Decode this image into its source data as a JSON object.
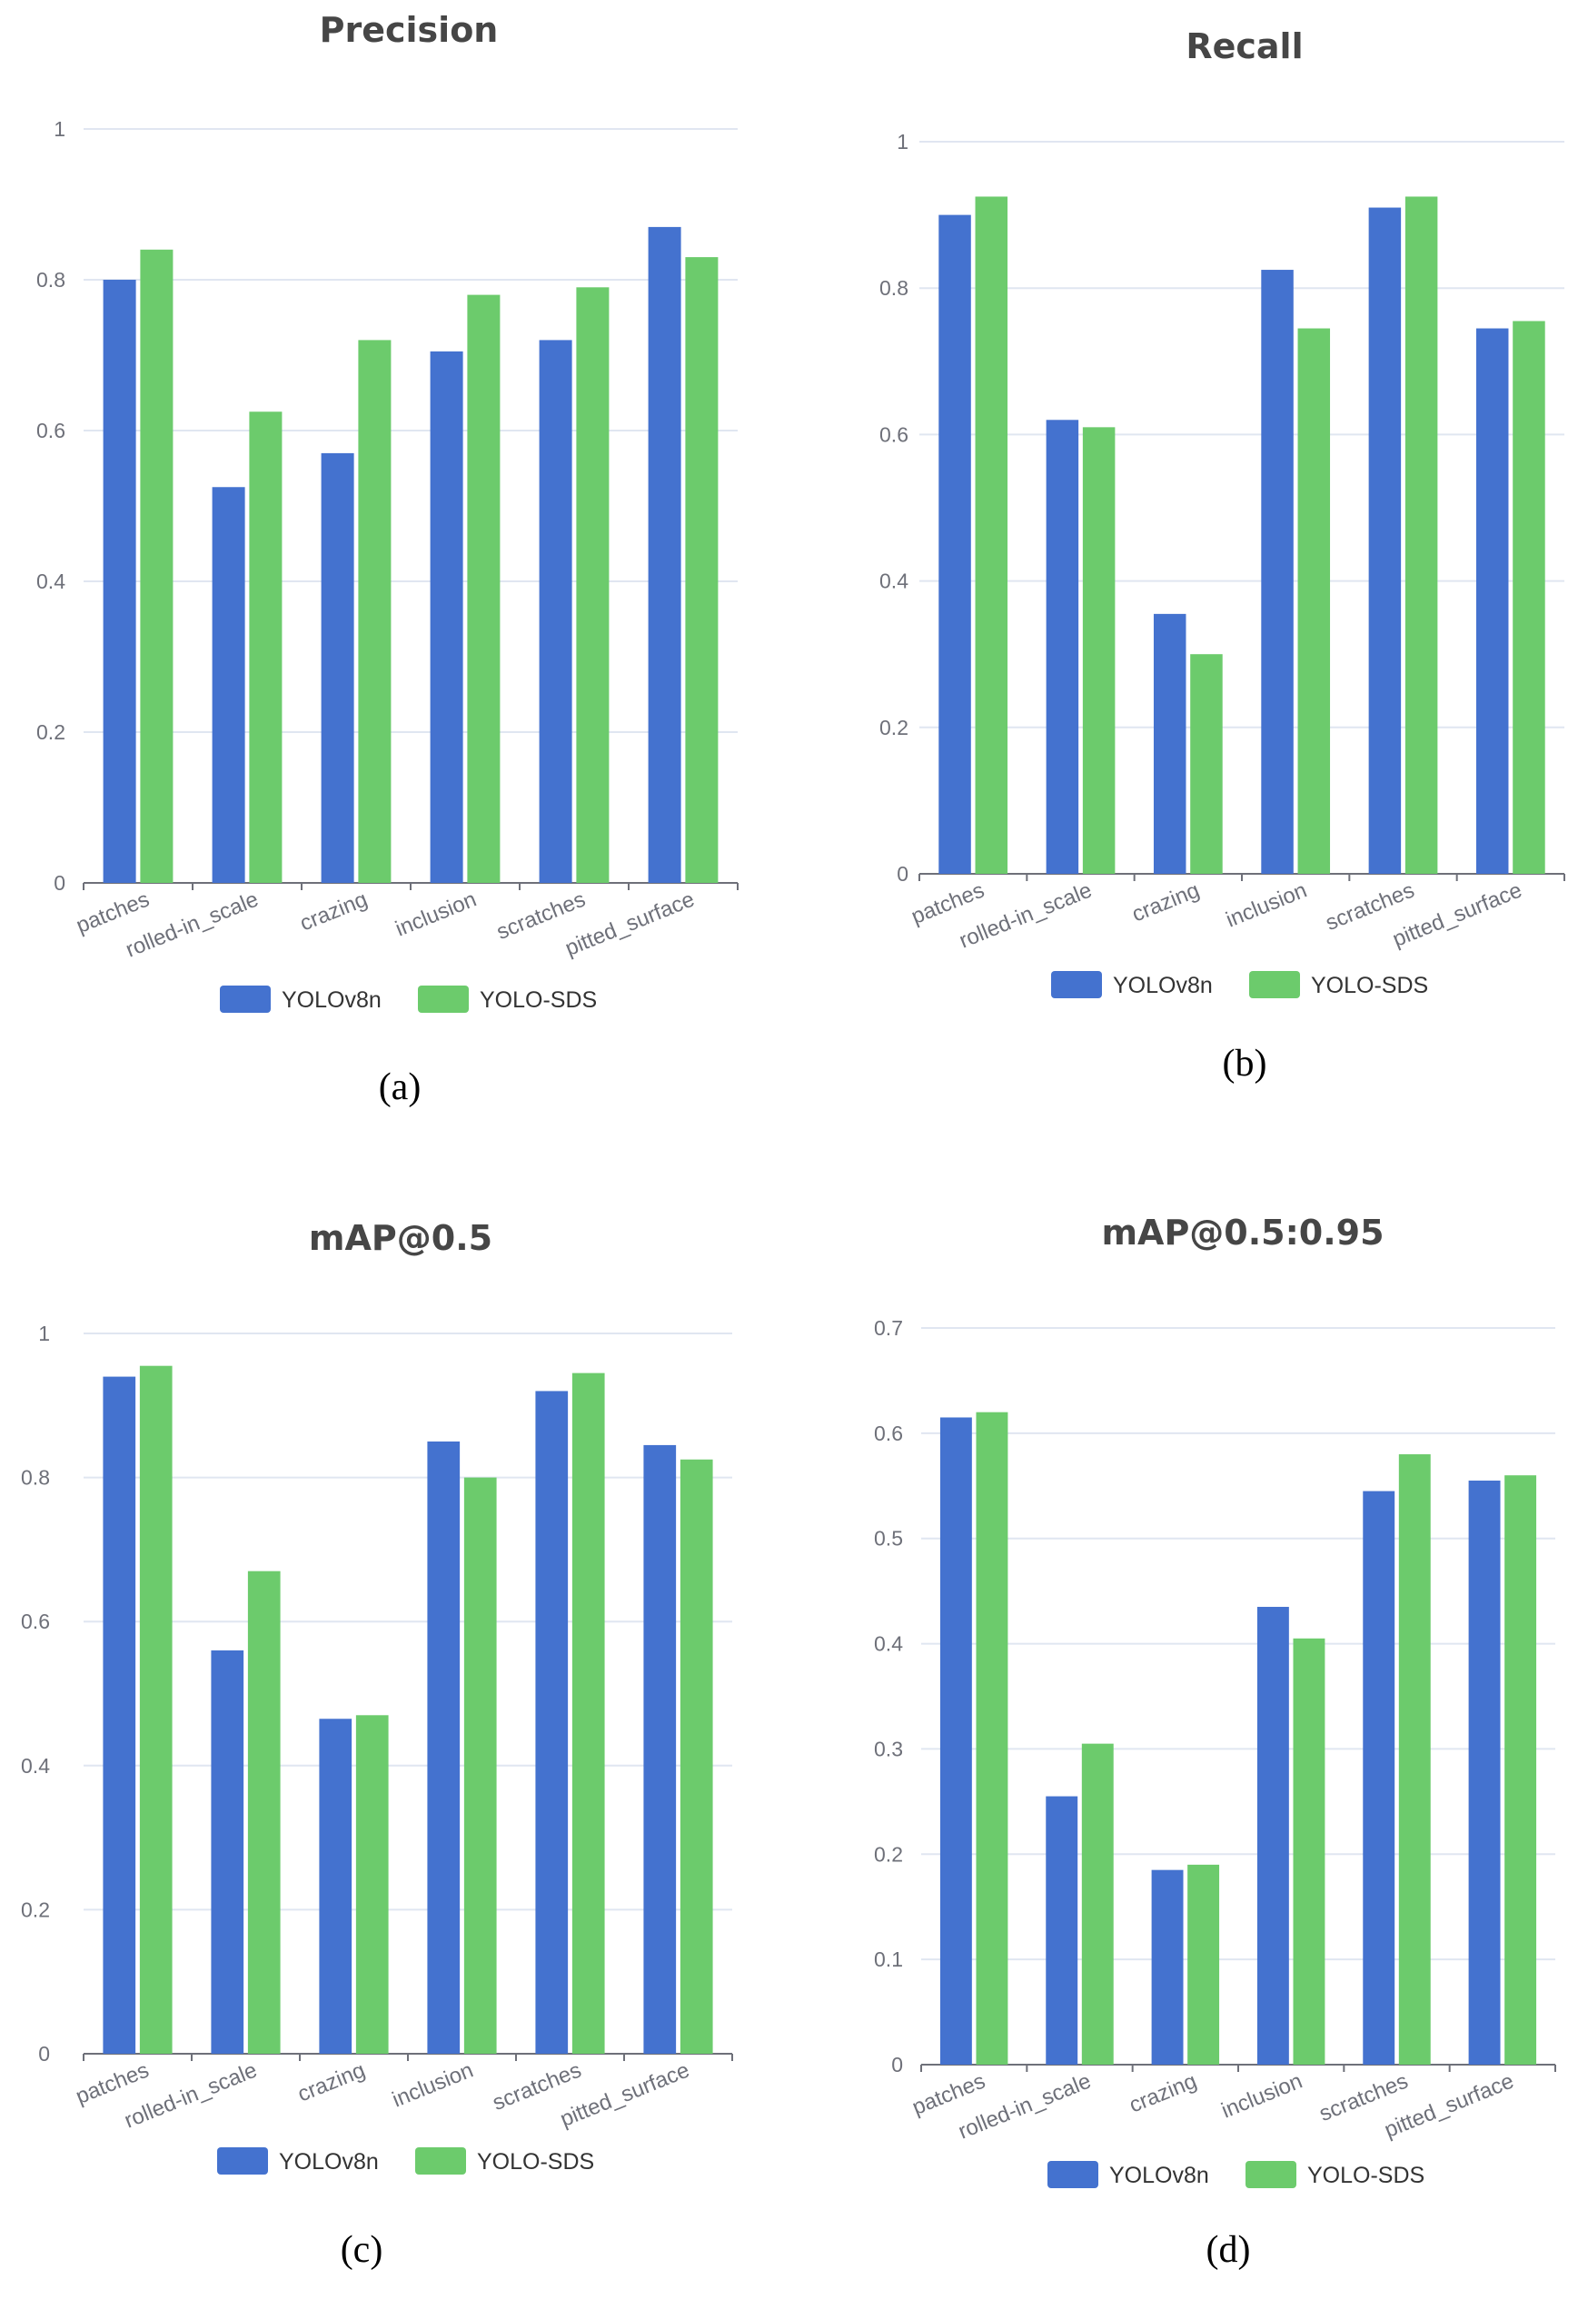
{
  "colors": {
    "yolov8n": "#4472cf",
    "yolo_sds": "#6ccb6c"
  },
  "chart_data": [
    {
      "type": "bar",
      "title": "Precision",
      "caption": "(a)",
      "categories": [
        "patches",
        "rolled-in_scale",
        "crazing",
        "inclusion",
        "scratches",
        "pitted_surface"
      ],
      "series": [
        {
          "name": "YOLOv8n",
          "values": [
            0.8,
            0.525,
            0.57,
            0.705,
            0.72,
            0.87
          ]
        },
        {
          "name": "YOLO-SDS",
          "values": [
            0.84,
            0.625,
            0.72,
            0.78,
            0.79,
            0.83
          ]
        }
      ],
      "yticks": [
        "0",
        "0.2",
        "0.4",
        "0.6",
        "0.8",
        "1"
      ],
      "ylim": [
        0,
        1
      ],
      "legend": "bottom-center"
    },
    {
      "type": "bar",
      "title": "Recall",
      "caption": "(b)",
      "categories": [
        "patches",
        "rolled-in_scale",
        "crazing",
        "inclusion",
        "scratches",
        "pitted_surface"
      ],
      "series": [
        {
          "name": "YOLOv8n",
          "values": [
            0.9,
            0.62,
            0.355,
            0.825,
            0.91,
            0.745
          ]
        },
        {
          "name": "YOLO-SDS",
          "values": [
            0.925,
            0.61,
            0.3,
            0.745,
            0.925,
            0.755
          ]
        }
      ],
      "yticks": [
        "0",
        "0.2",
        "0.4",
        "0.6",
        "0.8",
        "1"
      ],
      "ylim": [
        0,
        1
      ],
      "legend": "bottom-center"
    },
    {
      "type": "bar",
      "title": "mAP@0.5",
      "caption": "(c)",
      "categories": [
        "patches",
        "rolled-in_scale",
        "crazing",
        "inclusion",
        "scratches",
        "pitted_surface"
      ],
      "series": [
        {
          "name": "YOLOv8n",
          "values": [
            0.94,
            0.56,
            0.465,
            0.85,
            0.92,
            0.845
          ]
        },
        {
          "name": "YOLO-SDS",
          "values": [
            0.955,
            0.67,
            0.47,
            0.8,
            0.945,
            0.825
          ]
        }
      ],
      "yticks": [
        "0",
        "0.2",
        "0.4",
        "0.6",
        "0.8",
        "1"
      ],
      "ylim": [
        0,
        1
      ],
      "legend": "bottom-center"
    },
    {
      "type": "bar",
      "title": "mAP@0.5:0.95",
      "caption": "(d)",
      "categories": [
        "patches",
        "rolled-in_scale",
        "crazing",
        "inclusion",
        "scratches",
        "pitted_surface"
      ],
      "series": [
        {
          "name": "YOLOv8n",
          "values": [
            0.615,
            0.255,
            0.185,
            0.435,
            0.545,
            0.555
          ]
        },
        {
          "name": "YOLO-SDS",
          "values": [
            0.62,
            0.305,
            0.19,
            0.405,
            0.58,
            0.56
          ]
        }
      ],
      "yticks": [
        "0",
        "0.1",
        "0.2",
        "0.3",
        "0.4",
        "0.5",
        "0.6",
        "0.7"
      ],
      "ylim": [
        0,
        0.7
      ],
      "legend": "bottom-center"
    }
  ]
}
